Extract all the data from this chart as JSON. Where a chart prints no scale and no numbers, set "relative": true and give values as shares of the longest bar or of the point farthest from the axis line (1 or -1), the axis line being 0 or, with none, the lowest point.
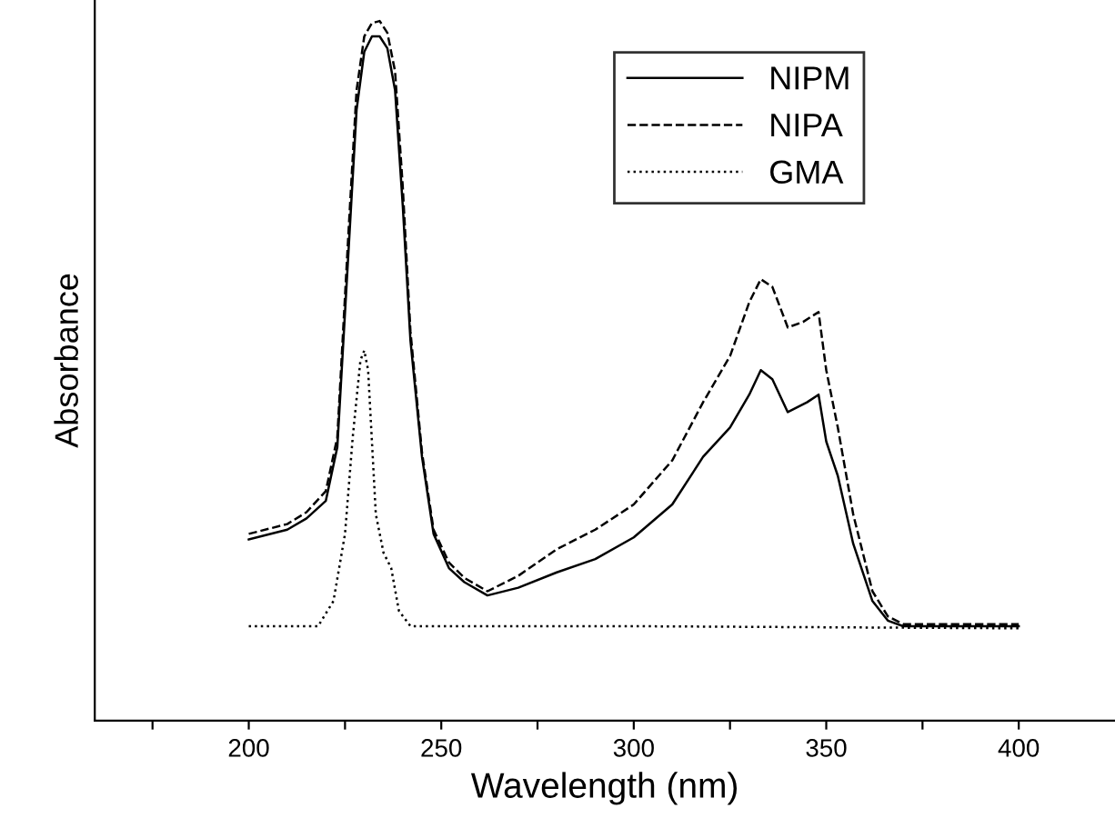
{
  "chart_data": {
    "type": "line",
    "relative": true,
    "xlabel": "Wavelength (nm)",
    "ylabel": "Absorbance",
    "xlim": [
      160,
      425
    ],
    "xticks": [
      {
        "value": 175,
        "label": null
      },
      200,
      {
        "value": 225,
        "label": null
      },
      250,
      {
        "value": 275,
        "label": null
      },
      300,
      {
        "value": 325,
        "label": null
      },
      350,
      {
        "value": 375,
        "label": null
      },
      400
    ],
    "legend": "top right",
    "grid": false,
    "series": [
      {
        "name": "NIPM",
        "color": "#000000",
        "line_style": "solid",
        "x": [
          200,
          210,
          215,
          220,
          223,
          226,
          228,
          230,
          232,
          234,
          236,
          238,
          240,
          242,
          245,
          248,
          252,
          256,
          262,
          270,
          280,
          290,
          300,
          310,
          318,
          325,
          330,
          333,
          336,
          340,
          345,
          348,
          350,
          353,
          357,
          362,
          366,
          370,
          400
        ],
        "values": [
          0.259,
          0.273,
          0.289,
          0.314,
          0.391,
          0.68,
          0.873,
          0.956,
          0.978,
          0.978,
          0.961,
          0.901,
          0.736,
          0.543,
          0.377,
          0.267,
          0.218,
          0.198,
          0.179,
          0.19,
          0.212,
          0.231,
          0.262,
          0.309,
          0.377,
          0.419,
          0.466,
          0.501,
          0.488,
          0.441,
          0.455,
          0.466,
          0.399,
          0.35,
          0.253,
          0.171,
          0.143,
          0.135,
          0.135
        ]
      },
      {
        "name": "NIPA",
        "color": "#000000",
        "line_style": "dashed",
        "x": [
          200,
          210,
          215,
          220,
          223,
          226,
          228,
          230,
          232,
          234,
          236,
          238,
          240,
          242,
          245,
          248,
          252,
          256,
          262,
          270,
          280,
          290,
          300,
          310,
          318,
          325,
          330,
          333,
          336,
          340,
          344,
          348,
          350,
          353,
          357,
          362,
          366,
          370,
          400
        ],
        "values": [
          0.267,
          0.281,
          0.298,
          0.328,
          0.405,
          0.708,
          0.901,
          0.978,
          0.997,
          1.0,
          0.983,
          0.928,
          0.763,
          0.556,
          0.383,
          0.273,
          0.226,
          0.204,
          0.185,
          0.207,
          0.245,
          0.273,
          0.309,
          0.372,
          0.455,
          0.521,
          0.598,
          0.631,
          0.62,
          0.562,
          0.57,
          0.584,
          0.501,
          0.419,
          0.295,
          0.185,
          0.149,
          0.138,
          0.138
        ]
      },
      {
        "name": "GMA",
        "color": "#000000",
        "line_style": "dotted",
        "x": [
          200,
          218,
          222,
          225,
          227,
          229,
          230,
          231,
          233,
          235,
          237,
          239,
          242,
          300,
          400
        ],
        "values": [
          0.135,
          0.135,
          0.171,
          0.267,
          0.405,
          0.515,
          0.529,
          0.501,
          0.295,
          0.24,
          0.218,
          0.157,
          0.135,
          0.135,
          0.132
        ]
      }
    ]
  }
}
